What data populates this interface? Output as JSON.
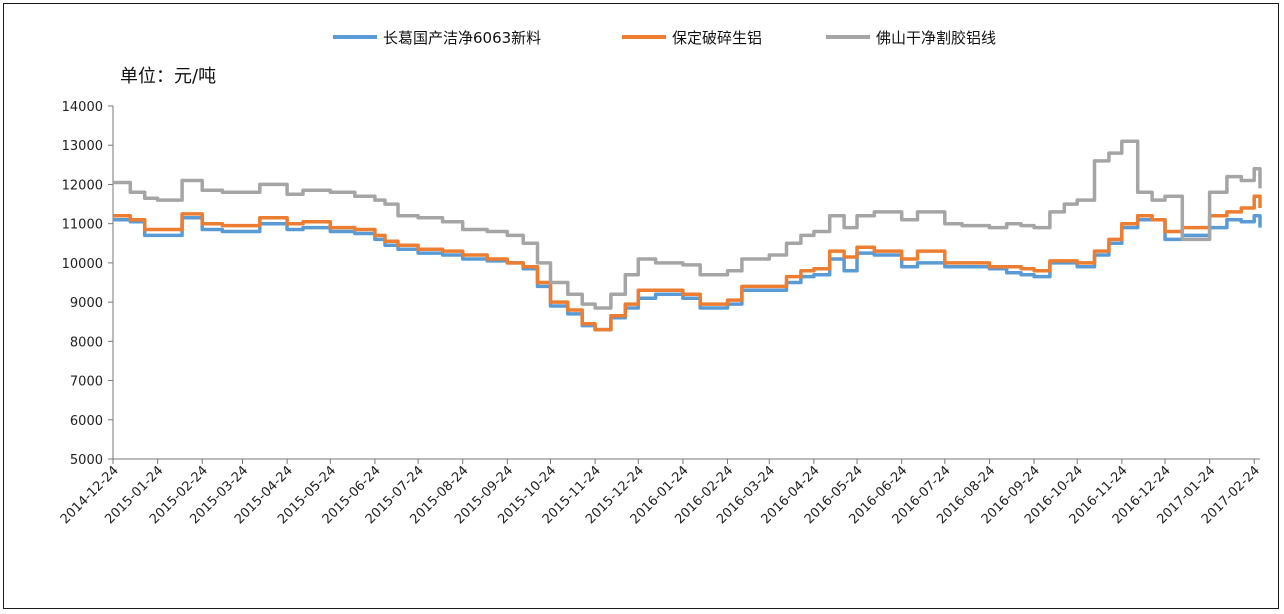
{
  "chart_data": {
    "type": "line",
    "unit_label": "单位：元/吨",
    "ylim": [
      5000,
      14000
    ],
    "yticks": [
      5000,
      6000,
      7000,
      8000,
      9000,
      10000,
      11000,
      12000,
      13000,
      14000
    ],
    "xlim": [
      "2014-12-24",
      "2017-02-28"
    ],
    "xticks": [
      "2014-12-24",
      "2015-01-24",
      "2015-02-24",
      "2015-03-24",
      "2015-04-24",
      "2015-05-24",
      "2015-06-24",
      "2015-07-24",
      "2015-08-24",
      "2015-09-24",
      "2015-10-24",
      "2015-11-24",
      "2015-12-24",
      "2016-01-24",
      "2016-02-24",
      "2016-03-24",
      "2016-04-24",
      "2016-05-24",
      "2016-06-24",
      "2016-07-24",
      "2016-08-24",
      "2016-09-24",
      "2016-10-24",
      "2016-11-24",
      "2016-12-24",
      "2017-01-24",
      "2017-02-24"
    ],
    "grid": false,
    "legend_position": "top",
    "series": [
      {
        "name": "长葛国产洁净6063新料",
        "color": "#5B9BD5",
        "x": [
          "2014-12-24",
          "2015-01-05",
          "2015-01-15",
          "2015-01-24",
          "2015-02-05",
          "2015-02-10",
          "2015-02-24",
          "2015-03-10",
          "2015-03-24",
          "2015-04-05",
          "2015-04-24",
          "2015-05-05",
          "2015-05-24",
          "2015-06-10",
          "2015-06-24",
          "2015-07-01",
          "2015-07-10",
          "2015-07-24",
          "2015-08-10",
          "2015-08-24",
          "2015-09-10",
          "2015-09-24",
          "2015-10-05",
          "2015-10-15",
          "2015-10-24",
          "2015-11-05",
          "2015-11-15",
          "2015-11-24",
          "2015-12-05",
          "2015-12-15",
          "2015-12-24",
          "2016-01-05",
          "2016-01-24",
          "2016-02-05",
          "2016-02-24",
          "2016-03-05",
          "2016-03-24",
          "2016-04-05",
          "2016-04-15",
          "2016-04-24",
          "2016-05-05",
          "2016-05-15",
          "2016-05-24",
          "2016-06-05",
          "2016-06-24",
          "2016-07-05",
          "2016-07-24",
          "2016-08-05",
          "2016-08-24",
          "2016-09-05",
          "2016-09-15",
          "2016-09-24",
          "2016-10-05",
          "2016-10-15",
          "2016-10-24",
          "2016-11-05",
          "2016-11-15",
          "2016-11-24",
          "2016-12-05",
          "2016-12-15",
          "2016-12-24",
          "2017-01-05",
          "2017-01-24",
          "2017-02-05",
          "2017-02-15",
          "2017-02-24",
          "2017-02-28"
        ],
        "values": [
          11100,
          11050,
          10700,
          10700,
          10700,
          11150,
          10850,
          10800,
          10800,
          11000,
          10850,
          10900,
          10800,
          10750,
          10600,
          10450,
          10350,
          10250,
          10200,
          10100,
          10050,
          10000,
          9850,
          9400,
          8900,
          8700,
          8400,
          8300,
          8600,
          8850,
          9100,
          9200,
          9100,
          8850,
          8950,
          9300,
          9300,
          9500,
          9650,
          9700,
          10100,
          9800,
          10250,
          10200,
          9900,
          10000,
          9900,
          9900,
          9850,
          9750,
          9700,
          9650,
          10000,
          10000,
          9900,
          10200,
          10500,
          10900,
          11100,
          11100,
          10600,
          10700,
          10900,
          11100,
          11050,
          11200,
          10900
        ]
      },
      {
        "name": "保定破碎生铝",
        "color": "#ED7D31",
        "x": [
          "2014-12-24",
          "2015-01-05",
          "2015-01-15",
          "2015-01-24",
          "2015-02-05",
          "2015-02-10",
          "2015-02-24",
          "2015-03-10",
          "2015-03-24",
          "2015-04-05",
          "2015-04-24",
          "2015-05-05",
          "2015-05-24",
          "2015-06-10",
          "2015-06-24",
          "2015-07-01",
          "2015-07-10",
          "2015-07-24",
          "2015-08-10",
          "2015-08-24",
          "2015-09-10",
          "2015-09-24",
          "2015-10-05",
          "2015-10-15",
          "2015-10-24",
          "2015-11-05",
          "2015-11-15",
          "2015-11-24",
          "2015-12-05",
          "2015-12-15",
          "2015-12-24",
          "2016-01-05",
          "2016-01-24",
          "2016-02-05",
          "2016-02-24",
          "2016-03-05",
          "2016-03-24",
          "2016-04-05",
          "2016-04-15",
          "2016-04-24",
          "2016-05-05",
          "2016-05-15",
          "2016-05-24",
          "2016-06-05",
          "2016-06-24",
          "2016-07-05",
          "2016-07-24",
          "2016-08-05",
          "2016-08-24",
          "2016-09-05",
          "2016-09-15",
          "2016-09-24",
          "2016-10-05",
          "2016-10-15",
          "2016-10-24",
          "2016-11-05",
          "2016-11-15",
          "2016-11-24",
          "2016-12-05",
          "2016-12-15",
          "2016-12-24",
          "2017-01-05",
          "2017-01-24",
          "2017-02-05",
          "2017-02-15",
          "2017-02-24",
          "2017-02-28"
        ],
        "values": [
          11200,
          11100,
          10850,
          10850,
          10850,
          11250,
          11000,
          10950,
          10950,
          11150,
          11000,
          11050,
          10900,
          10850,
          10700,
          10550,
          10450,
          10350,
          10300,
          10200,
          10100,
          10000,
          9900,
          9500,
          9000,
          8800,
          8450,
          8300,
          8650,
          8950,
          9300,
          9300,
          9200,
          8950,
          9050,
          9400,
          9400,
          9650,
          9800,
          9850,
          10300,
          10150,
          10400,
          10300,
          10100,
          10300,
          10000,
          10000,
          9900,
          9900,
          9850,
          9800,
          10050,
          10050,
          10000,
          10300,
          10600,
          11000,
          11200,
          11100,
          10800,
          10900,
          11200,
          11300,
          11400,
          11700,
          11400
        ]
      },
      {
        "name": "佛山干净割胶铝线",
        "color": "#A5A5A5",
        "x": [
          "2014-12-24",
          "2015-01-05",
          "2015-01-15",
          "2015-01-24",
          "2015-02-05",
          "2015-02-10",
          "2015-02-24",
          "2015-03-10",
          "2015-03-24",
          "2015-04-05",
          "2015-04-24",
          "2015-05-05",
          "2015-05-24",
          "2015-06-10",
          "2015-06-24",
          "2015-07-01",
          "2015-07-10",
          "2015-07-24",
          "2015-08-10",
          "2015-08-24",
          "2015-09-10",
          "2015-09-24",
          "2015-10-05",
          "2015-10-15",
          "2015-10-24",
          "2015-11-05",
          "2015-11-15",
          "2015-11-24",
          "2015-12-05",
          "2015-12-15",
          "2015-12-24",
          "2016-01-05",
          "2016-01-24",
          "2016-02-05",
          "2016-02-24",
          "2016-03-05",
          "2016-03-24",
          "2016-04-05",
          "2016-04-15",
          "2016-04-24",
          "2016-05-05",
          "2016-05-15",
          "2016-05-24",
          "2016-06-05",
          "2016-06-24",
          "2016-07-05",
          "2016-07-24",
          "2016-08-05",
          "2016-08-24",
          "2016-09-05",
          "2016-09-15",
          "2016-09-24",
          "2016-10-05",
          "2016-10-15",
          "2016-10-24",
          "2016-11-05",
          "2016-11-15",
          "2016-11-24",
          "2016-12-05",
          "2016-12-15",
          "2016-12-24",
          "2017-01-05",
          "2017-01-24",
          "2017-02-05",
          "2017-02-15",
          "2017-02-24",
          "2017-02-28"
        ],
        "values": [
          12050,
          11800,
          11650,
          11600,
          11600,
          12100,
          11850,
          11800,
          11800,
          12000,
          11750,
          11850,
          11800,
          11700,
          11600,
          11500,
          11200,
          11150,
          11050,
          10850,
          10800,
          10700,
          10500,
          10000,
          9500,
          9200,
          8950,
          8850,
          9200,
          9700,
          10100,
          10000,
          9950,
          9700,
          9800,
          10100,
          10200,
          10500,
          10700,
          10800,
          11200,
          10900,
          11200,
          11300,
          11100,
          11300,
          11000,
          10950,
          10900,
          11000,
          10950,
          10900,
          11300,
          11500,
          11600,
          12600,
          12800,
          13100,
          11800,
          11600,
          11700,
          10600,
          11800,
          12200,
          12100,
          12400,
          11900
        ]
      }
    ]
  }
}
